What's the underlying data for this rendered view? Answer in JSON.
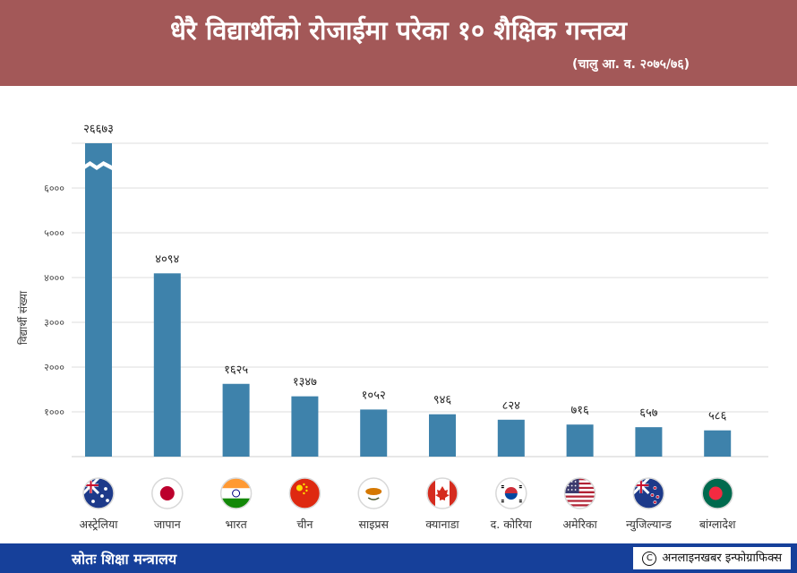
{
  "header": {
    "title": "धेरै विद्यार्थीको रोजाईमा परेका १० शैक्षिक गन्तव्य",
    "subtitle": "(चालु आ. व. २०७५/७६)"
  },
  "footer": {
    "source": "स्रोतः शिक्षा मन्त्रालय",
    "credit": "अनलाइनखबर इन्फोग्राफिक्स",
    "copyright_symbol": "C"
  },
  "colors": {
    "header": "#a35858",
    "bar": "#3e82ab",
    "footer": "#16409a"
  },
  "chart_data": {
    "type": "bar",
    "ylabel": "विद्यार्थी संख्या",
    "ylim": [
      0,
      7000
    ],
    "yticks": [
      {
        "value": 1000,
        "label": "१०००"
      },
      {
        "value": 2000,
        "label": "२०००"
      },
      {
        "value": 3000,
        "label": "३०००"
      },
      {
        "value": 4000,
        "label": "४०००"
      },
      {
        "value": 5000,
        "label": "५०००"
      },
      {
        "value": 6000,
        "label": "६०००"
      }
    ],
    "axis_break": true,
    "grid": true,
    "categories": [
      "अस्ट्रेलिया",
      "जापान",
      "भारत",
      "चीन",
      "साइप्रस",
      "क्यानाडा",
      "द. कोरिया",
      "अमेरिका",
      "न्युजिल्यान्ड",
      "बांग्लादेश"
    ],
    "values": [
      26673,
      4094,
      1625,
      1347,
      1052,
      946,
      824,
      716,
      657,
      586
    ],
    "value_labels": [
      "२६६७३",
      "४०९४",
      "१६२५",
      "१३४७",
      "१०५२",
      "९४६",
      "८२४",
      "७१६",
      "६५७",
      "५८६"
    ],
    "flags": [
      "australia-flag",
      "japan-flag",
      "india-flag",
      "china-flag",
      "cyprus-flag",
      "canada-flag",
      "south-korea-flag",
      "usa-flag",
      "new-zealand-flag",
      "bangladesh-flag"
    ]
  }
}
